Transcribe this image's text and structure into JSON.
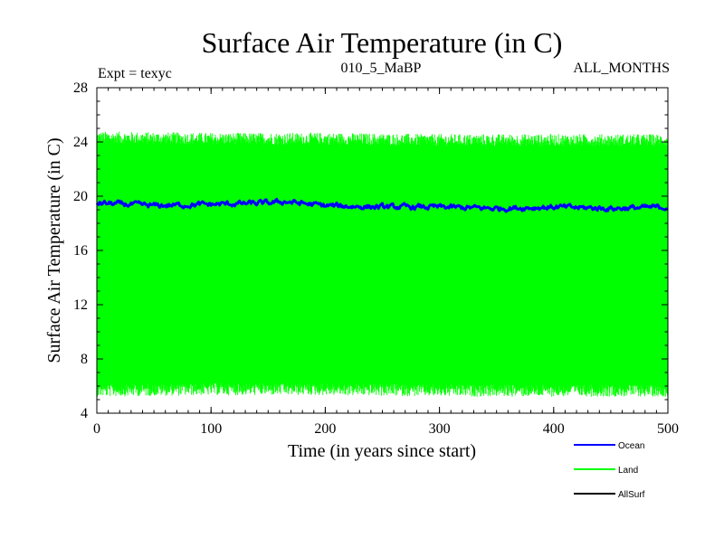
{
  "chart_data": {
    "type": "line",
    "title": "Surface Air Temperature (in C)",
    "subtitle_left": "Expt = texyc",
    "subtitle_center": "010_5_MaBP",
    "subtitle_right": "ALL_MONTHS",
    "xlabel": "Time (in years since start)",
    "ylabel": "Surface Air Temperature (in C)",
    "xlim": [
      0,
      500
    ],
    "ylim": [
      4,
      28
    ],
    "xticks": [
      0,
      100,
      200,
      300,
      400,
      500
    ],
    "yticks": [
      4,
      8,
      12,
      16,
      20,
      24,
      28
    ],
    "grid": false,
    "legend_position": "bottom-right",
    "series": [
      {
        "name": "Ocean",
        "color": "#0000ff",
        "style": "noisy-line",
        "x": [
          0,
          50,
          100,
          150,
          165,
          200,
          250,
          300,
          350,
          400,
          450,
          500
        ],
        "values": [
          19.5,
          19.3,
          19.4,
          19.5,
          19.6,
          19.3,
          19.2,
          19.2,
          19.1,
          19.2,
          19.1,
          19.2
        ],
        "noise_amplitude": 0.3
      },
      {
        "name": "Land",
        "color": "#00ff00",
        "style": "seasonal-band",
        "x": [
          0,
          100,
          200,
          300,
          400,
          500
        ],
        "upper": [
          24.2,
          24.1,
          24.1,
          24.0,
          24.0,
          24.0
        ],
        "lower": [
          5.8,
          5.9,
          5.9,
          5.8,
          5.8,
          5.8
        ],
        "noise_amplitude": 0.9
      },
      {
        "name": "AllSurf",
        "color": "#000000",
        "style": "line",
        "x": [],
        "values": []
      }
    ]
  }
}
